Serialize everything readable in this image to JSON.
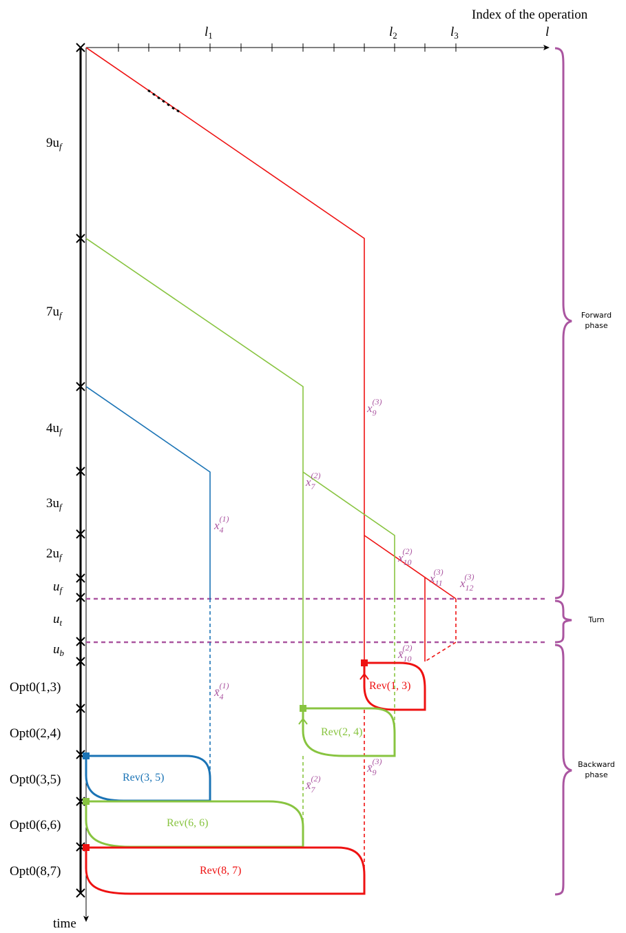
{
  "colors": {
    "red": "#ee1111",
    "green": "#88c440",
    "blue": "#1a73b5",
    "purple": "#aa55a0",
    "black": "#000000"
  },
  "axis": {
    "x_title": "Index of the operation",
    "x_ticks": [
      "l1",
      "l2",
      "l3",
      "l"
    ],
    "y_title": "time"
  },
  "time_labels": {
    "nine_uf": "9u",
    "seven_uf": "7u",
    "four_uf": "4u",
    "three_uf": "3u",
    "two_uf": "2u",
    "uf": "u",
    "ut": "u",
    "ub": "u",
    "opt13": "Opt0(1,3)",
    "opt24": "Opt0(2,4)",
    "opt35": "Opt0(3,5)",
    "opt66": "Opt0(6,6)",
    "opt87": "Opt0(8,7)"
  },
  "phases": {
    "forward": [
      "Forward",
      "phase"
    ],
    "turn": "Turn",
    "backward": [
      "Backward",
      "phase"
    ]
  },
  "rev_labels": {
    "rev13": "Rev(1, 3)",
    "rev24": "Rev(2, 4)",
    "rev35": "Rev(3, 5)",
    "rev66": "Rev(6, 6)",
    "rev87": "Rev(8, 7)"
  },
  "state_labels": {
    "x4": "x4(1)",
    "x7": "x7(2)",
    "x9": "x9(3)",
    "x10": "x10(2)",
    "x11": "x11(3)",
    "x12": "x12(3)",
    "xb4": "x̄4(1)",
    "xb7": "x̄7(2)",
    "xb9": "x̄9(3)",
    "xb10": "x̄10(2)"
  }
}
